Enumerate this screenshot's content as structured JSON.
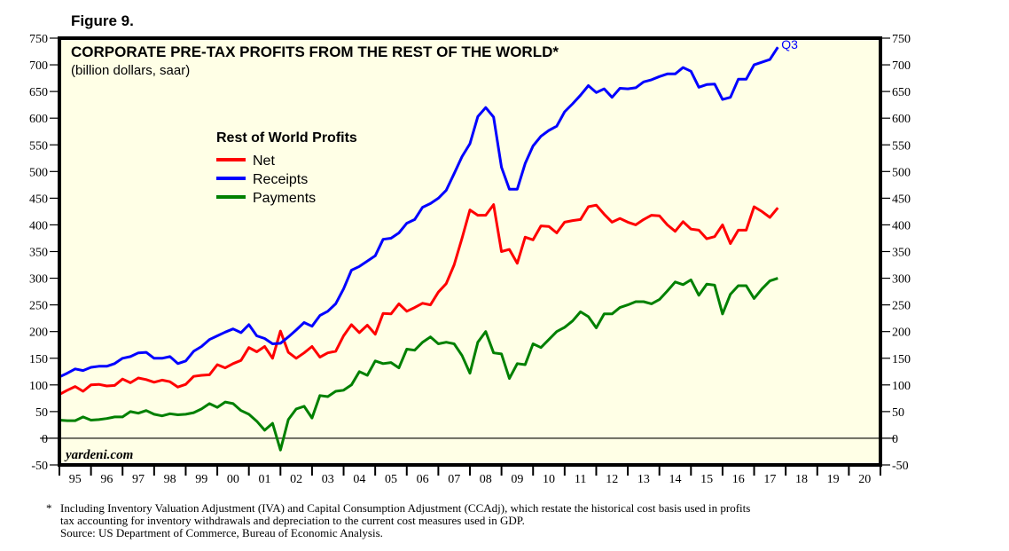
{
  "figure_label": "Figure 9.",
  "footnote": {
    "marker": "*",
    "line1": "Including Inventory Valuation Adjustment (IVA) and Capital Consumption Adjustment (CCAdj), which restate the historical cost basis used in profits",
    "line2": "tax accounting for inventory withdrawals and depreciation to the current cost measures used in GDP.",
    "line3": "Source: US Department of Commerce, Bureau of Economic Analysis."
  },
  "chart_data": {
    "type": "line",
    "title": "CORPORATE PRE-TAX PROFITS FROM THE REST OF THE WORLD*",
    "subtitle": "(billion dollars, saar)",
    "legend_title": "Rest of World Profits",
    "legend_placement": "upper-left-center",
    "watermark": "yardeni.com",
    "end_annotation": "Q3",
    "xlabel": "",
    "ylabel": "",
    "ylim": [
      -50,
      750
    ],
    "yticks": [
      -50,
      0,
      50,
      100,
      150,
      200,
      250,
      300,
      350,
      400,
      450,
      500,
      550,
      600,
      650,
      700,
      750
    ],
    "xlim": [
      1995,
      2021
    ],
    "xtick_labels": [
      "95",
      "96",
      "97",
      "98",
      "99",
      "00",
      "01",
      "02",
      "03",
      "04",
      "05",
      "06",
      "07",
      "08",
      "09",
      "10",
      "11",
      "12",
      "13",
      "14",
      "15",
      "16",
      "17",
      "18",
      "19",
      "20"
    ],
    "x_start": 1995.0,
    "x_step": 0.25,
    "grid": false,
    "zero_line": true,
    "series": [
      {
        "name": "Net",
        "color": "#ff0000",
        "values": [
          82,
          90,
          97,
          88,
          100,
          101,
          98,
          99,
          111,
          104,
          113,
          110,
          105,
          109,
          106,
          96,
          101,
          116,
          118,
          119,
          138,
          132,
          140,
          146,
          170,
          162,
          172,
          150,
          201,
          161,
          150,
          160,
          172,
          152,
          160,
          163,
          192,
          213,
          198,
          212,
          195,
          234,
          233,
          252,
          238,
          245,
          253,
          250,
          274,
          290,
          325,
          375,
          428,
          418,
          418,
          438,
          350,
          354,
          328,
          377,
          372,
          398,
          397,
          385,
          405,
          408,
          410,
          434,
          437,
          420,
          405,
          412,
          405,
          400,
          410,
          418,
          417,
          400,
          388,
          406,
          392,
          390,
          374,
          378,
          400,
          365,
          390,
          390,
          434,
          425,
          414,
          432
        ]
      },
      {
        "name": "Receipts",
        "color": "#0000ff",
        "values": [
          115,
          122,
          130,
          127,
          133,
          135,
          135,
          140,
          150,
          153,
          160,
          161,
          150,
          150,
          153,
          140,
          145,
          163,
          172,
          185,
          192,
          199,
          205,
          198,
          213,
          192,
          187,
          177,
          178,
          190,
          203,
          217,
          210,
          230,
          238,
          252,
          280,
          315,
          322,
          332,
          342,
          373,
          375,
          385,
          403,
          410,
          433,
          440,
          450,
          465,
          496,
          528,
          552,
          603,
          620,
          602,
          508,
          467,
          467,
          515,
          548,
          566,
          577,
          585,
          612,
          627,
          643,
          661,
          648,
          655,
          639,
          656,
          655,
          657,
          668,
          672,
          678,
          683,
          683,
          695,
          688,
          658,
          663,
          664,
          635,
          639,
          673,
          673,
          700,
          705,
          710,
          733
        ]
      },
      {
        "name": "Payments",
        "color": "#008000",
        "values": [
          34,
          33,
          33,
          40,
          34,
          35,
          37,
          40,
          40,
          50,
          47,
          52,
          45,
          42,
          46,
          44,
          45,
          48,
          55,
          65,
          58,
          68,
          65,
          52,
          45,
          32,
          15,
          28,
          -22,
          35,
          55,
          60,
          38,
          80,
          78,
          88,
          90,
          100,
          125,
          118,
          145,
          140,
          142,
          132,
          167,
          165,
          180,
          190,
          177,
          180,
          177,
          155,
          122,
          180,
          200,
          160,
          158,
          112,
          140,
          138,
          177,
          170,
          185,
          200,
          208,
          220,
          237,
          228,
          207,
          233,
          233,
          245,
          250,
          256,
          256,
          252,
          260,
          276,
          293,
          288,
          297,
          268,
          289,
          287,
          233,
          270,
          286,
          286,
          262,
          280,
          295,
          300
        ]
      }
    ]
  }
}
